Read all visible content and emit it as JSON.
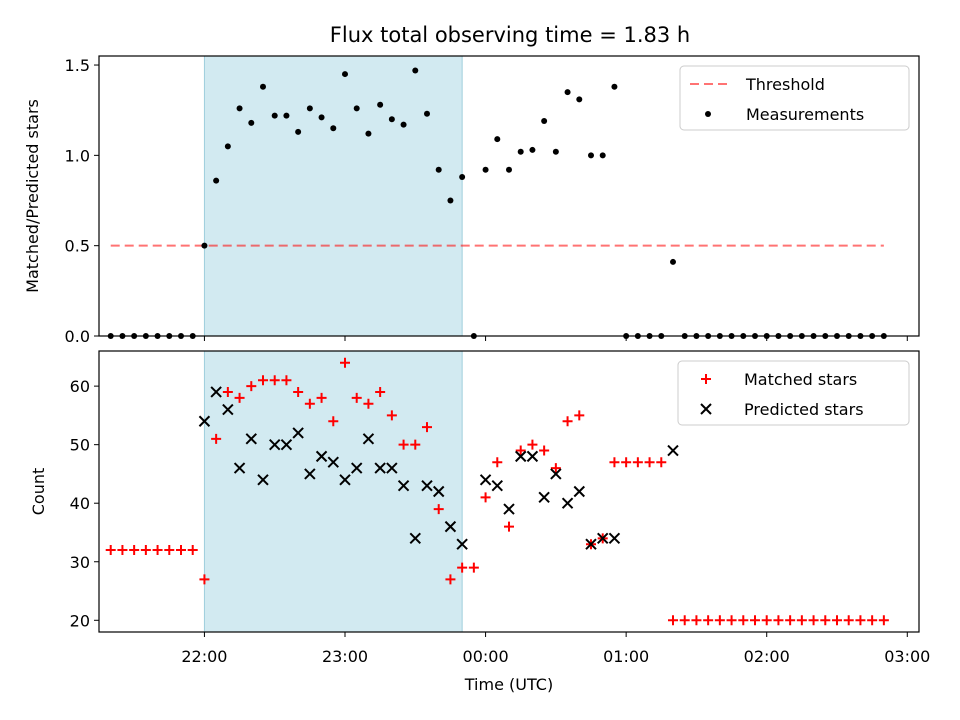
{
  "title": "Flux total observing time = 1.83 h",
  "chart_data": [
    {
      "type": "scatter",
      "ylabel": "Matched/Predicted stars",
      "ylim": [
        0,
        1.55
      ],
      "yticks": [
        0.0,
        0.5,
        1.0,
        1.5
      ],
      "ytick_labels": [
        "0.0",
        "0.5",
        "1.0",
        "1.5"
      ],
      "grid": false,
      "legend": {
        "location": "top-right",
        "entries": [
          "Threshold",
          "Measurements"
        ]
      },
      "highlight_span": {
        "start": "22:00",
        "end": "23:50",
        "color": "#add8e6"
      },
      "threshold": {
        "name": "Threshold",
        "value": 0.5,
        "x_start": "21:20",
        "x_end": "02:50",
        "color": "#ff0000",
        "style": "dashed"
      },
      "series": [
        {
          "name": "Measurements",
          "marker": "dot",
          "color": "#000000",
          "x": [
            "21:20",
            "21:25",
            "21:30",
            "21:35",
            "21:40",
            "21:45",
            "21:50",
            "21:55",
            "22:00",
            "22:05",
            "22:10",
            "22:15",
            "22:20",
            "22:25",
            "22:30",
            "22:35",
            "22:40",
            "22:45",
            "22:50",
            "22:55",
            "23:00",
            "23:05",
            "23:10",
            "23:15",
            "23:20",
            "23:25",
            "23:30",
            "23:35",
            "23:40",
            "23:45",
            "23:50",
            "23:55",
            "00:00",
            "00:05",
            "00:10",
            "00:15",
            "00:20",
            "00:25",
            "00:30",
            "00:35",
            "00:40",
            "00:45",
            "00:50",
            "00:55",
            "01:00",
            "01:05",
            "01:10",
            "01:15",
            "01:20",
            "01:25",
            "01:30",
            "01:35",
            "01:40",
            "01:45",
            "01:50",
            "01:55",
            "02:00",
            "02:05",
            "02:10",
            "02:15",
            "02:20",
            "02:25",
            "02:30",
            "02:35",
            "02:40",
            "02:45",
            "02:50"
          ],
          "y": [
            0,
            0,
            0,
            0,
            0,
            0,
            0,
            0,
            0.5,
            0.86,
            1.05,
            1.26,
            1.18,
            1.38,
            1.22,
            1.22,
            1.13,
            1.26,
            1.21,
            1.15,
            1.45,
            1.26,
            1.12,
            1.28,
            1.2,
            1.17,
            1.47,
            1.23,
            0.92,
            0.75,
            0.88,
            0,
            0.92,
            1.09,
            0.92,
            1.02,
            1.03,
            1.19,
            1.02,
            1.35,
            1.31,
            1.0,
            1.0,
            1.38,
            0,
            0,
            0,
            0,
            0.41,
            0,
            0,
            0,
            0,
            0,
            0,
            0,
            0,
            0,
            0,
            0,
            0,
            0,
            0,
            0,
            0,
            0,
            0
          ]
        }
      ]
    },
    {
      "type": "scatter",
      "xlabel": "Time (UTC)",
      "ylabel": "Count",
      "ylim": [
        18,
        66
      ],
      "yticks": [
        20,
        30,
        40,
        50,
        60
      ],
      "ytick_labels": [
        "20",
        "30",
        "40",
        "50",
        "60"
      ],
      "xlim": [
        "21:15",
        "03:05"
      ],
      "xticks": [
        "22:00",
        "23:00",
        "00:00",
        "01:00",
        "02:00",
        "03:00"
      ],
      "xtick_labels": [
        "22:00",
        "23:00",
        "00:00",
        "01:00",
        "02:00",
        "03:00"
      ],
      "grid": false,
      "legend": {
        "location": "top-right",
        "entries": [
          "Matched stars",
          "Predicted stars"
        ]
      },
      "highlight_span": {
        "start": "22:00",
        "end": "23:50",
        "color": "#add8e6"
      },
      "series": [
        {
          "name": "Matched stars",
          "marker": "plus",
          "color": "#ff0000",
          "x": [
            "21:20",
            "21:25",
            "21:30",
            "21:35",
            "21:40",
            "21:45",
            "21:50",
            "21:55",
            "22:00",
            "22:05",
            "22:10",
            "22:15",
            "22:20",
            "22:25",
            "22:30",
            "22:35",
            "22:40",
            "22:45",
            "22:50",
            "22:55",
            "23:00",
            "23:05",
            "23:10",
            "23:15",
            "23:20",
            "23:25",
            "23:30",
            "23:35",
            "23:40",
            "23:45",
            "23:50",
            "23:55",
            "00:00",
            "00:05",
            "00:10",
            "00:15",
            "00:20",
            "00:25",
            "00:30",
            "00:35",
            "00:40",
            "00:45",
            "00:50",
            "00:55",
            "01:00",
            "01:05",
            "01:10",
            "01:15",
            "01:20",
            "01:25",
            "01:30",
            "01:35",
            "01:40",
            "01:45",
            "01:50",
            "01:55",
            "02:00",
            "02:05",
            "02:10",
            "02:15",
            "02:20",
            "02:25",
            "02:30",
            "02:35",
            "02:40",
            "02:45",
            "02:50"
          ],
          "y": [
            32,
            32,
            32,
            32,
            32,
            32,
            32,
            32,
            27,
            51,
            59,
            58,
            60,
            61,
            61,
            61,
            59,
            57,
            58,
            54,
            64,
            58,
            57,
            59,
            55,
            50,
            50,
            53,
            39,
            27,
            29,
            29,
            41,
            47,
            36,
            49,
            50,
            49,
            46,
            54,
            55,
            33,
            34,
            47,
            47,
            47,
            47,
            47,
            20,
            20,
            20,
            20,
            20,
            20,
            20,
            20,
            20,
            20,
            20,
            20,
            20,
            20,
            20,
            20,
            20,
            20,
            20
          ]
        },
        {
          "name": "Predicted stars",
          "marker": "x",
          "color": "#000000",
          "x": [
            "22:00",
            "22:05",
            "22:10",
            "22:15",
            "22:20",
            "22:25",
            "22:30",
            "22:35",
            "22:40",
            "22:45",
            "22:50",
            "22:55",
            "23:00",
            "23:05",
            "23:10",
            "23:15",
            "23:20",
            "23:25",
            "23:30",
            "23:35",
            "23:40",
            "23:45",
            "23:50",
            "00:00",
            "00:05",
            "00:10",
            "00:15",
            "00:20",
            "00:25",
            "00:30",
            "00:35",
            "00:40",
            "00:45",
            "00:50",
            "00:55",
            "01:20"
          ],
          "y": [
            54,
            59,
            56,
            46,
            51,
            44,
            50,
            50,
            52,
            45,
            48,
            47,
            44,
            46,
            51,
            46,
            46,
            43,
            34,
            43,
            42,
            36,
            33,
            44,
            43,
            39,
            48,
            48,
            41,
            45,
            40,
            42,
            33,
            34,
            34,
            49
          ]
        }
      ]
    }
  ]
}
